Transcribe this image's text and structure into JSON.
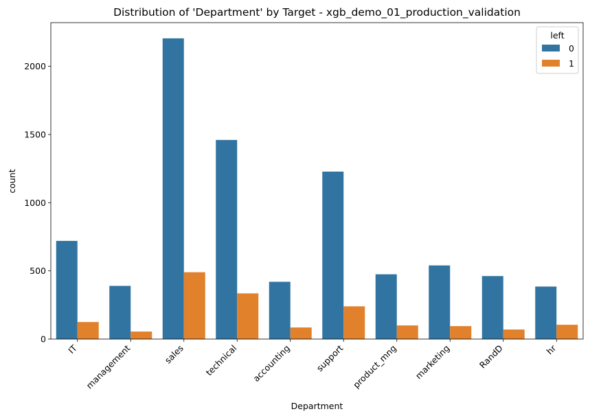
{
  "chart_data": {
    "type": "bar",
    "title": "Distribution of 'Department' by Target - xgb_demo_01_production_validation",
    "xlabel": "Department",
    "ylabel": "count",
    "categories": [
      "IT",
      "management",
      "sales",
      "technical",
      "accounting",
      "support",
      "product_mng",
      "marketing",
      "RandD",
      "hr"
    ],
    "series": [
      {
        "name": "0",
        "color": "#3274a1",
        "values": [
          720,
          390,
          2205,
          1460,
          420,
          1228,
          475,
          540,
          462,
          385
        ]
      },
      {
        "name": "1",
        "color": "#e1812c",
        "values": [
          125,
          55,
          490,
          335,
          85,
          240,
          100,
          95,
          70,
          105
        ]
      }
    ],
    "ylim": [
      0,
      2320
    ],
    "yticks": [
      0,
      500,
      1000,
      1500,
      2000
    ],
    "legend": {
      "title": "left",
      "placement": "top-right"
    },
    "grid": false
  }
}
